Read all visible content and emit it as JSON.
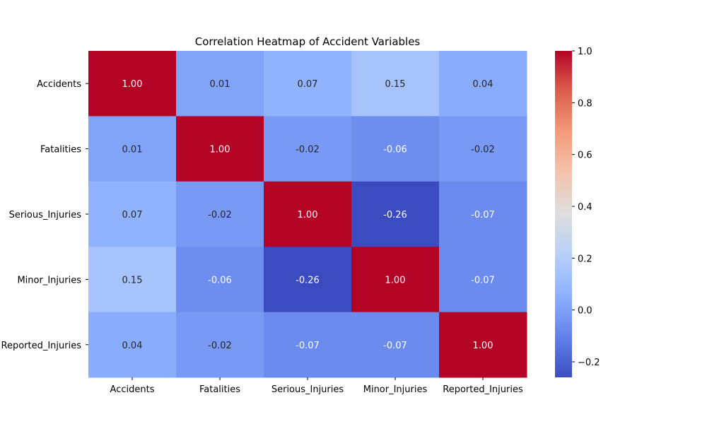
{
  "chart_data": {
    "type": "heatmap",
    "title": "Correlation Heatmap of Accident Variables",
    "xlabel": "",
    "ylabel": "",
    "x_categories": [
      "Accidents",
      "Fatalities",
      "Serious_Injuries",
      "Minor_Injuries",
      "Reported_Injuries"
    ],
    "y_categories": [
      "Accidents",
      "Fatalities",
      "Serious_Injuries",
      "Minor_Injuries",
      "Reported_Injuries"
    ],
    "values": [
      [
        1.0,
        0.01,
        0.07,
        0.15,
        0.04
      ],
      [
        0.01,
        1.0,
        -0.02,
        -0.06,
        -0.02
      ],
      [
        0.07,
        -0.02,
        1.0,
        -0.26,
        -0.07
      ],
      [
        0.15,
        -0.06,
        -0.26,
        1.0,
        -0.07
      ],
      [
        0.04,
        -0.02,
        -0.07,
        -0.07,
        1.0
      ]
    ],
    "value_format": "0.00",
    "colormap": "coolwarm",
    "colorbar": {
      "range": [
        -0.26,
        1.0
      ],
      "ticks": [
        -0.2,
        0.0,
        0.2,
        0.4,
        0.6,
        0.8,
        1.0
      ],
      "tick_labels": [
        "−0.2",
        "0.0",
        "0.2",
        "0.4",
        "0.6",
        "0.8",
        "1.0"
      ]
    },
    "grid": false,
    "colors": {
      "low": "#3b4cc0",
      "mid": "#dddddd",
      "high": "#b40426"
    }
  }
}
